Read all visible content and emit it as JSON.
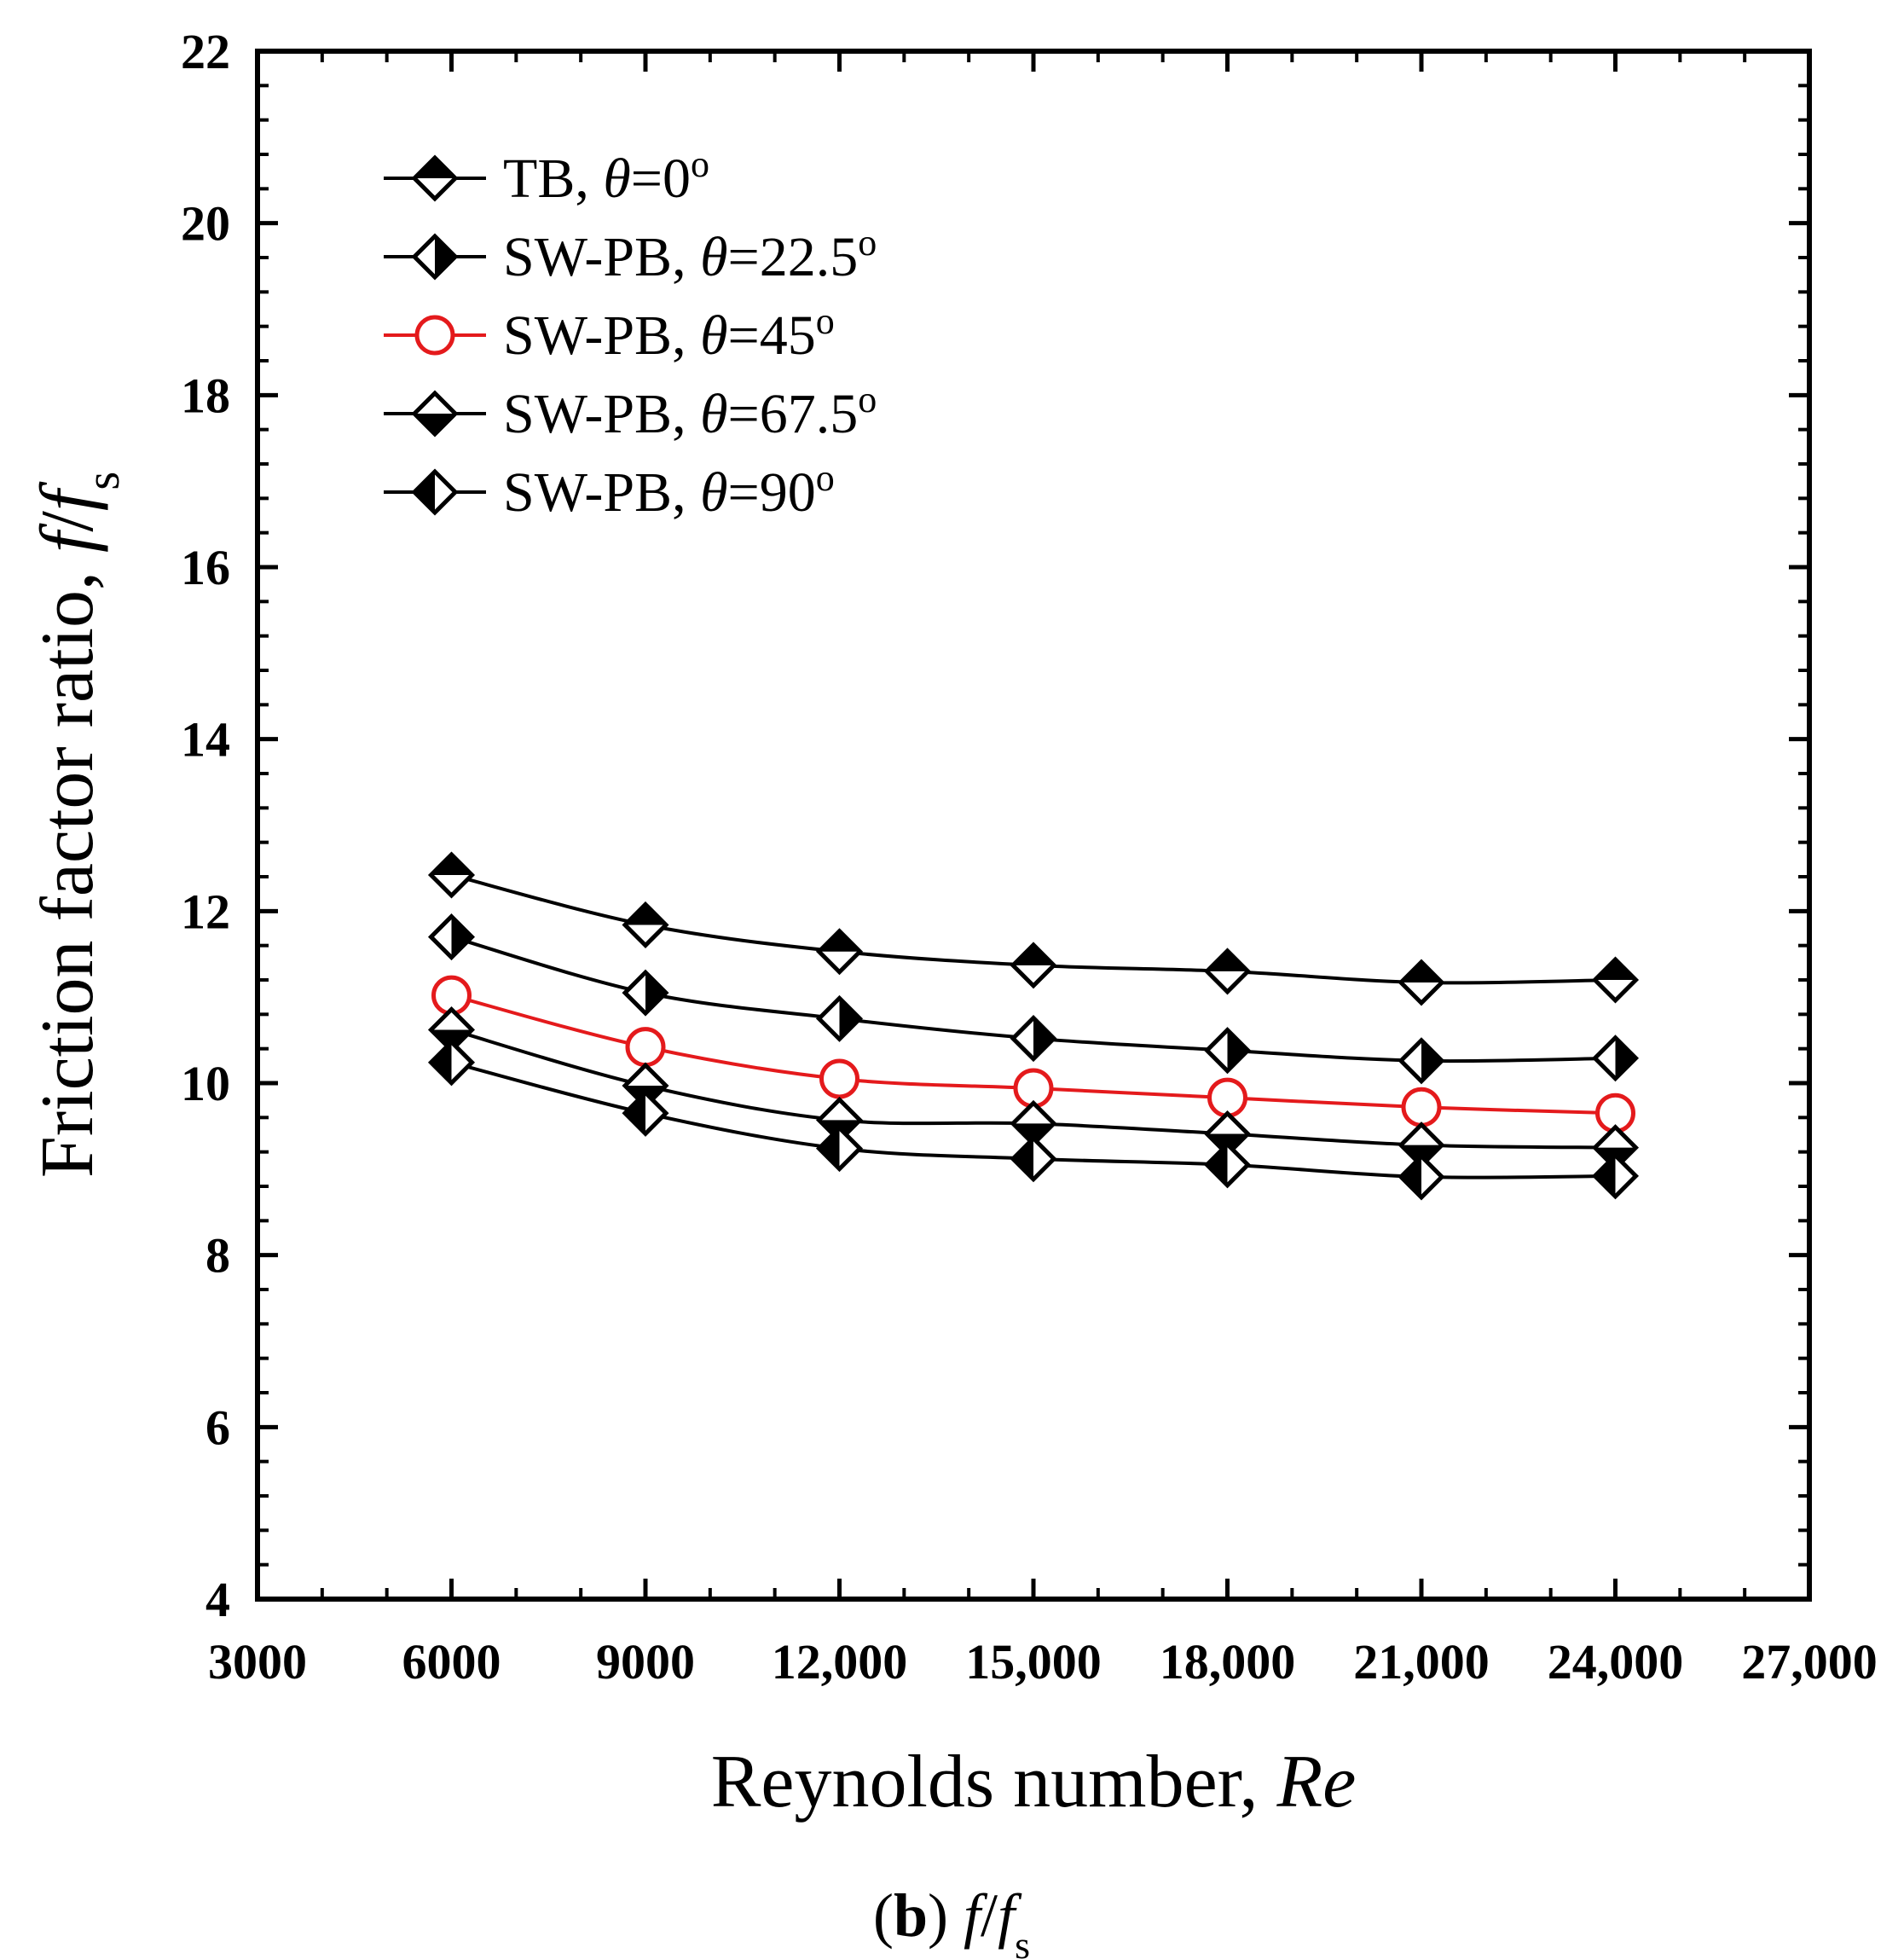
{
  "chart_data": {
    "type": "line",
    "xlabel": "Reynolds number, ",
    "xlabel_var": "Re",
    "ylabel": "Friction factor ratio, ",
    "ylabel_var": "f",
    "ylabel_sep": "/",
    "ylabel_sub_var": "f",
    "ylabel_subscript": "s",
    "xlim": [
      3000,
      27000
    ],
    "ylim": [
      4,
      22
    ],
    "x_ticks": [
      3000,
      6000,
      9000,
      12000,
      15000,
      18000,
      21000,
      24000,
      27000
    ],
    "x_tick_labels": [
      "3000",
      "6000",
      "9000",
      "12,000",
      "15,000",
      "18,000",
      "21,000",
      "24,000",
      "27,000"
    ],
    "y_ticks": [
      4,
      6,
      8,
      10,
      12,
      14,
      16,
      18,
      20,
      22
    ],
    "y_tick_labels": [
      "4",
      "6",
      "8",
      "10",
      "12",
      "14",
      "16",
      "18",
      "20",
      "22"
    ],
    "grid": false,
    "legend_position": "top-left",
    "x": [
      6000,
      9000,
      12000,
      15000,
      18000,
      21000,
      24000
    ],
    "series": [
      {
        "name": "TB",
        "theta_symbol": "θ",
        "theta_value": "=0",
        "degree": "o",
        "marker": "diamond-half-top",
        "color": "#000000",
        "values": [
          12.42,
          11.84,
          11.53,
          11.37,
          11.3,
          11.17,
          11.2
        ]
      },
      {
        "name": "SW-PB",
        "theta_symbol": "θ",
        "theta_value": "=22.5",
        "degree": "o",
        "marker": "diamond-half-right",
        "color": "#000000",
        "values": [
          11.7,
          11.05,
          10.75,
          10.52,
          10.38,
          10.26,
          10.29
        ]
      },
      {
        "name": "SW-PB",
        "theta_symbol": "θ",
        "theta_value": "=45",
        "degree": "o",
        "marker": "circle-open",
        "color": "#e41a1c",
        "values": [
          11.02,
          10.42,
          10.05,
          9.94,
          9.83,
          9.72,
          9.65
        ]
      },
      {
        "name": "SW-PB",
        "theta_symbol": "θ",
        "theta_value": "=67.5",
        "degree": "o",
        "marker": "diamond-half-bottom",
        "color": "#000000",
        "values": [
          10.62,
          9.97,
          9.57,
          9.53,
          9.41,
          9.28,
          9.25
        ]
      },
      {
        "name": "SW-PB",
        "theta_symbol": "θ",
        "theta_value": "=90",
        "degree": "o",
        "marker": "diamond-half-left",
        "color": "#000000",
        "values": [
          10.24,
          9.65,
          9.24,
          9.12,
          9.05,
          8.91,
          8.92
        ]
      }
    ]
  },
  "caption": {
    "label_open": "(",
    "label": "b",
    "label_close": ") ",
    "var": "f",
    "sep": "/",
    "sub_var": "f",
    "subscript": "s"
  }
}
